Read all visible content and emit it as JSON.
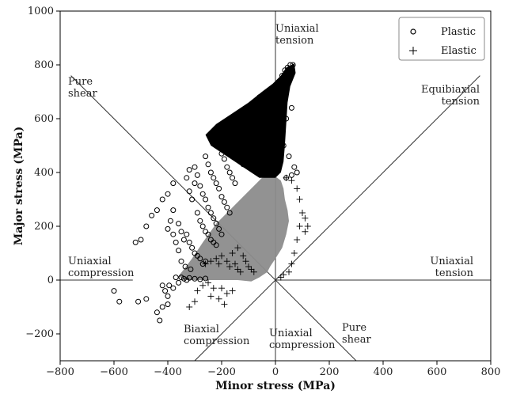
{
  "chart_data": {
    "type": "scatter",
    "xlabel": "Minor stress (MPa)",
    "ylabel": "Major stress (MPa)",
    "xlim": [
      -800,
      800
    ],
    "ylim": [
      -300,
      1000
    ],
    "xticks": [
      "−800",
      "−600",
      "−400",
      "−200",
      "0",
      "200",
      "400",
      "600",
      "800"
    ],
    "yticks": [
      "−200",
      "0",
      "200",
      "400",
      "600",
      "800",
      "1000"
    ],
    "legend_position": "top-right",
    "series": [
      {
        "name": "Plastic",
        "marker": "circle",
        "color": "#000000",
        "points": [
          [
            -600,
            -40
          ],
          [
            -580,
            -80
          ],
          [
            -510,
            -80
          ],
          [
            -480,
            -70
          ],
          [
            -440,
            -120
          ],
          [
            -430,
            -150
          ],
          [
            -420,
            -100
          ],
          [
            -400,
            -60
          ],
          [
            -395,
            -20
          ],
          [
            -370,
            10
          ],
          [
            -350,
            10
          ],
          [
            -330,
            0
          ],
          [
            -420,
            -20
          ],
          [
            -410,
            -40
          ],
          [
            -400,
            -90
          ],
          [
            -380,
            -30
          ],
          [
            -360,
            -10
          ],
          [
            -340,
            5
          ],
          [
            -320,
            8
          ],
          [
            -300,
            5
          ],
          [
            -280,
            3
          ],
          [
            -260,
            6
          ],
          [
            -380,
            260
          ],
          [
            -360,
            210
          ],
          [
            -350,
            180
          ],
          [
            -340,
            150
          ],
          [
            -330,
            170
          ],
          [
            -320,
            140
          ],
          [
            -310,
            120
          ],
          [
            -300,
            100
          ],
          [
            -290,
            90
          ],
          [
            -280,
            80
          ],
          [
            -270,
            60
          ],
          [
            -260,
            70
          ],
          [
            -400,
            190
          ],
          [
            -390,
            220
          ],
          [
            -380,
            170
          ],
          [
            -370,
            140
          ],
          [
            -360,
            110
          ],
          [
            -350,
            70
          ],
          [
            -335,
            50
          ],
          [
            -315,
            40
          ],
          [
            -330,
            380
          ],
          [
            -320,
            330
          ],
          [
            -310,
            300
          ],
          [
            -300,
            360
          ],
          [
            -290,
            250
          ],
          [
            -280,
            220
          ],
          [
            -270,
            200
          ],
          [
            -260,
            180
          ],
          [
            -250,
            170
          ],
          [
            -240,
            150
          ],
          [
            -230,
            140
          ],
          [
            -220,
            130
          ],
          [
            -320,
            410
          ],
          [
            -300,
            420
          ],
          [
            -290,
            390
          ],
          [
            -280,
            350
          ],
          [
            -270,
            320
          ],
          [
            -260,
            300
          ],
          [
            -250,
            270
          ],
          [
            -240,
            250
          ],
          [
            -230,
            230
          ],
          [
            -220,
            210
          ],
          [
            -210,
            190
          ],
          [
            -200,
            170
          ],
          [
            -260,
            460
          ],
          [
            -250,
            430
          ],
          [
            -240,
            400
          ],
          [
            -230,
            380
          ],
          [
            -220,
            360
          ],
          [
            -210,
            340
          ],
          [
            -200,
            310
          ],
          [
            -190,
            290
          ],
          [
            -180,
            270
          ],
          [
            -170,
            250
          ],
          [
            -220,
            520
          ],
          [
            -210,
            500
          ],
          [
            -200,
            470
          ],
          [
            -190,
            450
          ],
          [
            -180,
            420
          ],
          [
            -170,
            400
          ],
          [
            -160,
            380
          ],
          [
            -150,
            360
          ],
          [
            -180,
            560
          ],
          [
            -170,
            540
          ],
          [
            -160,
            510
          ],
          [
            -150,
            490
          ],
          [
            -140,
            470
          ],
          [
            -130,
            450
          ],
          [
            -120,
            430
          ],
          [
            -140,
            590
          ],
          [
            -130,
            570
          ],
          [
            -120,
            550
          ],
          [
            -110,
            530
          ],
          [
            -100,
            510
          ],
          [
            -90,
            490
          ],
          [
            -80,
            470
          ],
          [
            -110,
            630
          ],
          [
            -100,
            610
          ],
          [
            -90,
            590
          ],
          [
            -80,
            570
          ],
          [
            -70,
            550
          ],
          [
            -60,
            530
          ],
          [
            -50,
            510
          ],
          [
            -60,
            680
          ],
          [
            -50,
            660
          ],
          [
            -40,
            640
          ],
          [
            -30,
            620
          ],
          [
            -20,
            600
          ],
          [
            -10,
            580
          ],
          [
            0,
            560
          ],
          [
            20,
            700
          ],
          [
            30,
            720
          ],
          [
            40,
            740
          ],
          [
            50,
            760
          ],
          [
            60,
            780
          ],
          [
            65,
            800
          ],
          [
            55,
            800
          ],
          [
            45,
            790
          ],
          [
            35,
            780
          ],
          [
            25,
            760
          ],
          [
            20,
            560
          ],
          [
            40,
            600
          ],
          [
            60,
            640
          ],
          [
            30,
            500
          ],
          [
            50,
            460
          ],
          [
            70,
            420
          ],
          [
            80,
            400
          ],
          [
            60,
            390
          ],
          [
            40,
            380
          ],
          [
            -380,
            360
          ],
          [
            -400,
            320
          ],
          [
            -420,
            300
          ],
          [
            -440,
            260
          ],
          [
            -460,
            240
          ],
          [
            -480,
            200
          ],
          [
            -500,
            150
          ],
          [
            -520,
            140
          ]
        ]
      },
      {
        "name": "Elastic",
        "marker": "plus",
        "color": "#000000",
        "points": [
          [
            -300,
            -80
          ],
          [
            -320,
            -100
          ],
          [
            -290,
            -40
          ],
          [
            -270,
            -20
          ],
          [
            -250,
            -10
          ],
          [
            -240,
            -60
          ],
          [
            -230,
            -30
          ],
          [
            -210,
            -70
          ],
          [
            -190,
            -90
          ],
          [
            -200,
            -30
          ],
          [
            -180,
            -50
          ],
          [
            -160,
            -40
          ],
          [
            -260,
            60
          ],
          [
            -240,
            70
          ],
          [
            -220,
            80
          ],
          [
            -210,
            60
          ],
          [
            -200,
            90
          ],
          [
            -180,
            70
          ],
          [
            -170,
            50
          ],
          [
            -150,
            60
          ],
          [
            -140,
            40
          ],
          [
            -130,
            30
          ],
          [
            -160,
            100
          ],
          [
            -140,
            120
          ],
          [
            -120,
            90
          ],
          [
            -110,
            70
          ],
          [
            -100,
            50
          ],
          [
            -90,
            40
          ],
          [
            -80,
            30
          ],
          [
            20,
            10
          ],
          [
            30,
            20
          ],
          [
            50,
            30
          ],
          [
            60,
            60
          ],
          [
            70,
            100
          ],
          [
            80,
            150
          ],
          [
            90,
            200
          ],
          [
            100,
            250
          ],
          [
            90,
            300
          ],
          [
            80,
            340
          ],
          [
            60,
            370
          ],
          [
            40,
            380
          ],
          [
            110,
            230
          ],
          [
            120,
            200
          ],
          [
            110,
            180
          ]
        ]
      }
    ],
    "annotations": [
      {
        "text": [
          "Uniaxial",
          "tension"
        ],
        "x": 0,
        "y": 1000
      },
      {
        "text": [
          "Pure",
          "shear"
        ],
        "x": -770,
        "y": 800
      },
      {
        "text": [
          "Equibiaxial",
          "tension"
        ],
        "x": 800,
        "y": 800
      },
      {
        "text": [
          "Uniaxial",
          "compression"
        ],
        "x": -800,
        "y": 0
      },
      {
        "text": [
          "Uniaxial",
          "tension"
        ],
        "x": 800,
        "y": 0
      },
      {
        "text": [
          "Biaxial",
          "compression"
        ],
        "x": -340,
        "y": -300
      },
      {
        "text": [
          "Uniaxial",
          "compression"
        ],
        "x": 0,
        "y": -300
      },
      {
        "text": [
          "Pure",
          "shear"
        ],
        "x": 280,
        "y": -300
      }
    ],
    "reference_lines": [
      {
        "name": "vertical",
        "from": [
          0,
          -300
        ],
        "to": [
          0,
          1000
        ]
      },
      {
        "name": "horizontal",
        "from": [
          0,
          0
        ],
        "to": [
          800,
          0
        ]
      },
      {
        "name": "horizontal-left",
        "from": [
          -800,
          0
        ],
        "to": [
          -530,
          0
        ]
      },
      {
        "name": "equibiaxial",
        "from": [
          -300,
          -300
        ],
        "to": [
          760,
          760
        ]
      },
      {
        "name": "pure-shear",
        "from": [
          -760,
          760
        ],
        "to": [
          300,
          -300
        ]
      }
    ]
  }
}
